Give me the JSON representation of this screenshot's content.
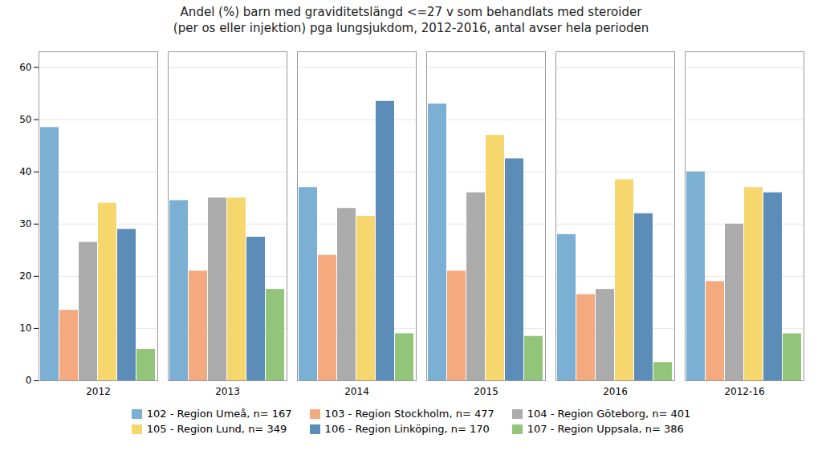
{
  "chart_data": {
    "type": "bar",
    "title": "Andel (%) barn med graviditetslängd <=27 v som behandlats med steroider\n(per os eller injektion) pga lungsjukdom, 2012-2016, antal avser hela perioden",
    "categories": [
      "2012",
      "2013",
      "2014",
      "2015",
      "2016",
      "2012-16"
    ],
    "series": [
      {
        "name": "102 - Region Umeå, n= 167",
        "color": "#7BAFD4",
        "values": [
          48.5,
          34.5,
          37.0,
          53.0,
          28.0,
          40.0
        ]
      },
      {
        "name": "103 - Region Stockholm, n= 477",
        "color": "#F4A97F",
        "values": [
          13.5,
          21.0,
          24.0,
          21.0,
          16.5,
          19.0
        ]
      },
      {
        "name": "104 - Region Göteborg, n= 401",
        "color": "#ABABAB",
        "values": [
          26.5,
          35.0,
          33.0,
          36.0,
          17.5,
          30.0
        ]
      },
      {
        "name": "105 - Region Lund, n= 349",
        "color": "#F5D76E",
        "values": [
          34.0,
          35.0,
          31.5,
          47.0,
          38.5,
          37.0
        ]
      },
      {
        "name": "106 - Region Linköping, n= 170",
        "color": "#5B8DB8",
        "values": [
          29.0,
          27.5,
          53.5,
          42.5,
          32.0,
          36.0
        ]
      },
      {
        "name": "107 - Region Uppsala, n= 386",
        "color": "#92C57A",
        "values": [
          6.0,
          17.5,
          9.0,
          8.5,
          3.5,
          9.0
        ]
      }
    ],
    "ylim": [
      0,
      63
    ],
    "yticks": [
      0,
      10,
      20,
      30,
      40,
      50,
      60
    ],
    "grid": true,
    "legend": "bottom"
  }
}
